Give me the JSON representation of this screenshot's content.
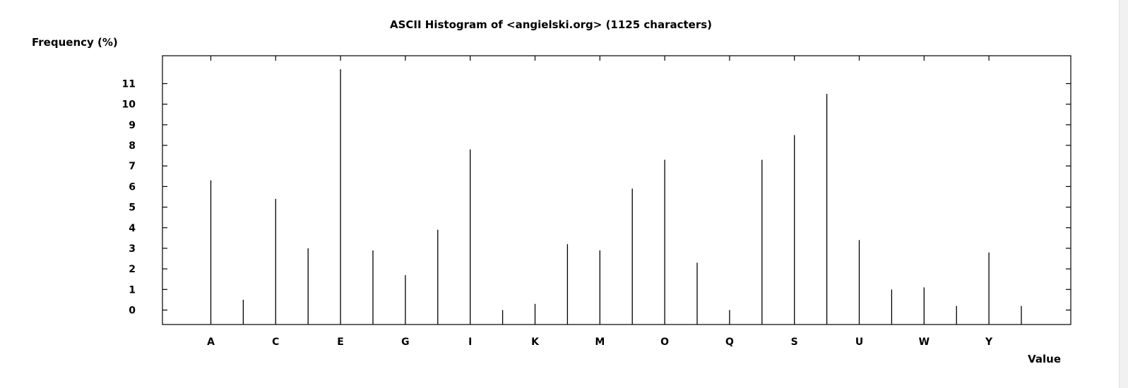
{
  "chart_data": {
    "type": "bar",
    "title": "ASCII Histogram of <angielski.org> (1125 characters)",
    "ylabel": "Frequency (%)",
    "xlabel": "Value",
    "categories": [
      "A",
      "B",
      "C",
      "D",
      "E",
      "F",
      "G",
      "H",
      "I",
      "J",
      "K",
      "L",
      "M",
      "N",
      "O",
      "P",
      "Q",
      "R",
      "S",
      "T",
      "U",
      "V",
      "W",
      "X",
      "Y",
      "Z"
    ],
    "category_labels_shown": [
      "A",
      "C",
      "E",
      "G",
      "I",
      "K",
      "M",
      "O",
      "Q",
      "S",
      "U",
      "W",
      "Y"
    ],
    "values": [
      6.3,
      0.5,
      5.4,
      3.0,
      11.7,
      2.9,
      1.7,
      3.9,
      7.8,
      0.0,
      0.3,
      3.2,
      2.9,
      5.9,
      7.3,
      2.3,
      0.0,
      7.3,
      8.5,
      10.5,
      3.4,
      1.0,
      1.1,
      0.2,
      2.8,
      0.2
    ],
    "yticks": [
      0,
      1,
      2,
      3,
      4,
      5,
      6,
      7,
      8,
      9,
      10,
      11
    ],
    "ylim": [
      -0.7,
      12.3
    ],
    "grid": false,
    "legend": "none"
  }
}
